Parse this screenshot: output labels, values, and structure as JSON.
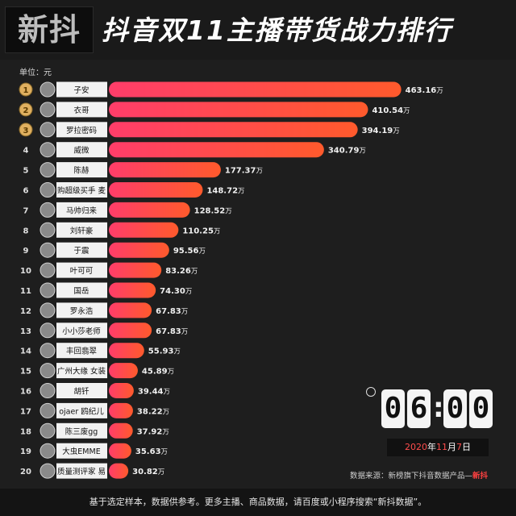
{
  "header": {
    "logo": "新抖",
    "title": "抖音双11主播带货战力排行"
  },
  "chart_data": {
    "type": "bar",
    "orientation": "horizontal",
    "title": "抖音双11主播带货战力排行",
    "unit_label": "单位：元",
    "value_suffix": "万",
    "ranks": [
      "1",
      "2",
      "3",
      "4",
      "5",
      "6",
      "7",
      "8",
      "9",
      "10",
      "11",
      "12",
      "13",
      "14",
      "15",
      "16",
      "17",
      "18",
      "19",
      "20"
    ],
    "categories": [
      "子安",
      "衣哥",
      "罗拉密码",
      "威微",
      "陈赫",
      "购超级买手 麦",
      "马帅归来",
      "刘轩豪",
      "于震",
      "叶可可",
      "国岳",
      "罗永浩",
      "小小莎老师",
      "丰回翡翠",
      "广州大缘 女装",
      "胡钎",
      "ojaer 鸥纪儿",
      "陈三废gg",
      "大虫EMME",
      "质量测评家 易"
    ],
    "values": [
      463.16,
      410.54,
      394.19,
      340.79,
      177.37,
      148.72,
      128.52,
      110.25,
      95.56,
      83.26,
      74.3,
      67.83,
      67.83,
      55.93,
      45.89,
      39.44,
      38.22,
      37.92,
      35.63,
      30.82
    ],
    "value_labels": [
      "463.16",
      "410.54",
      "394.19",
      "340.79",
      "177.37",
      "148.72",
      "128.52",
      "110.25",
      "95.56",
      "83.26",
      "74.30",
      "67.83",
      "67.83",
      "55.93",
      "45.89",
      "39.44",
      "38.22",
      "37.92",
      "35.63",
      "30.82"
    ],
    "colors": {
      "gradient_start": "#ff3d6a",
      "gradient_end": "#ff5a2c",
      "medal": "#e0b060"
    }
  },
  "clock": {
    "d1": "0",
    "d2": "6",
    "d3": "0",
    "d4": "0"
  },
  "date": {
    "year": "2020",
    "year_unit": "年",
    "month": "11",
    "month_unit": "月",
    "day": "7",
    "day_unit": "日"
  },
  "source": {
    "text": "数据来源：新榜旗下抖音数据产品—",
    "brand": "新抖"
  },
  "footer": {
    "text": "基于选定样本，数据供参考。更多主播、商品数据，请百度或小程序搜索“新抖数据”。"
  }
}
